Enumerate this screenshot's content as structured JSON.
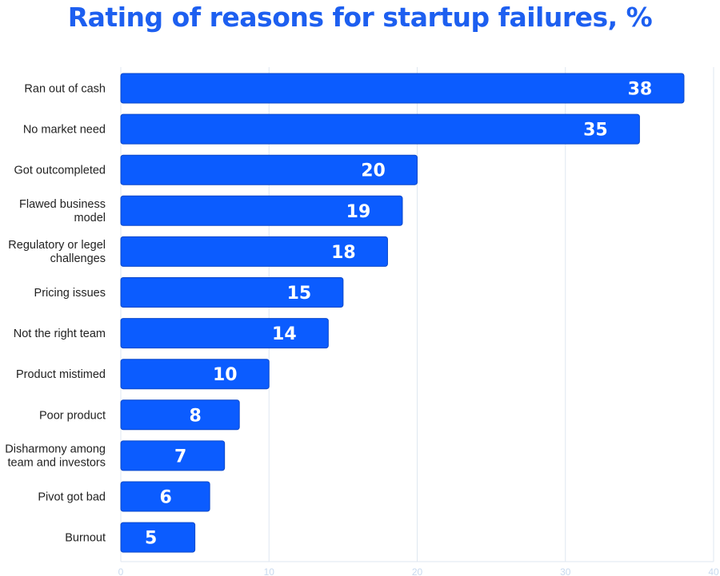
{
  "chart_data": {
    "type": "bar",
    "orientation": "horizontal",
    "title": "Rating of reasons for startup failures, %",
    "categories": [
      "Ran out of cash",
      "No market need",
      "Got outcompleted",
      "Flawed business model",
      "Regulatory or legel challenges",
      "Pricing issues",
      "Not the right team",
      "Product mistimed",
      "Poor product",
      "Disharmony among team and investors",
      "Pivot got bad",
      "Burnout"
    ],
    "values": [
      38,
      35,
      20,
      19,
      18,
      15,
      14,
      10,
      8,
      7,
      6,
      5
    ],
    "xlim": [
      0,
      40
    ],
    "xticks": [
      0,
      10,
      20,
      30,
      40
    ],
    "grid": true,
    "legend": "none",
    "colors": {
      "title": "#1d5ff0",
      "bar": "#0b5cff",
      "bar_border": "#0a47c9",
      "grid": "#dfe7f1"
    }
  }
}
